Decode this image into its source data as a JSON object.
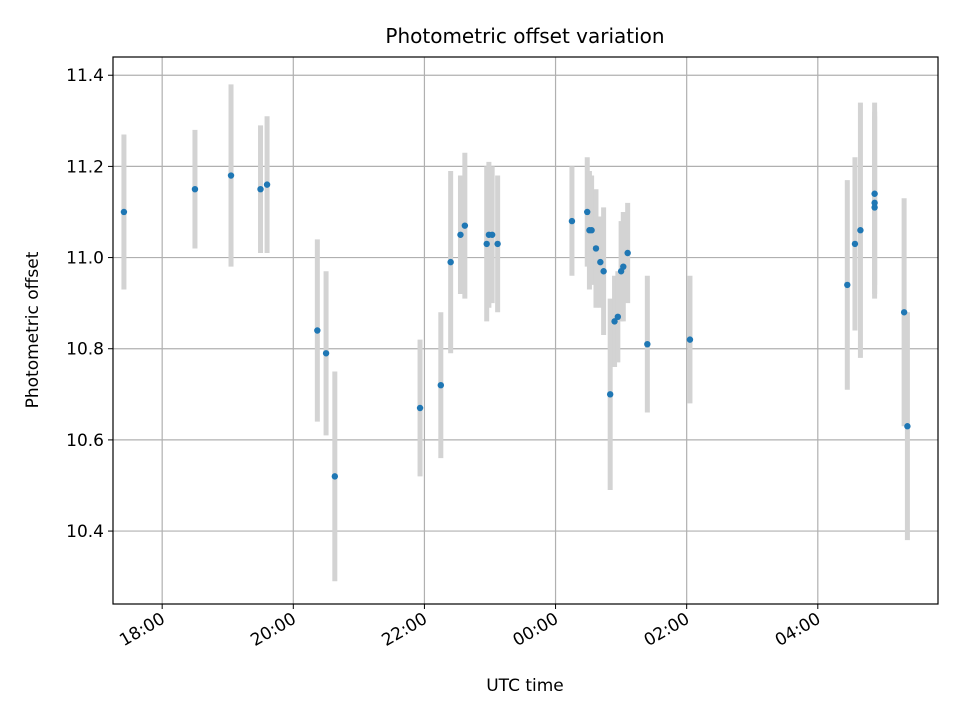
{
  "chart_data": {
    "type": "scatter",
    "title": "Photometric offset variation",
    "xlabel": "UTC time",
    "ylabel": "Photometric offset",
    "xlim": [
      "17:15",
      "05:50"
    ],
    "ylim": [
      10.24,
      11.44
    ],
    "x_ticks": [
      "18:00",
      "20:00",
      "22:00",
      "00:00",
      "02:00",
      "04:00"
    ],
    "y_ticks": [
      "10.4",
      "10.6",
      "10.8",
      "11.0",
      "11.2",
      "11.4"
    ],
    "grid": true,
    "colors": {
      "points": "#1f77b4",
      "errorbars": "#d3d3d3",
      "grid": "#b0b0b0"
    },
    "points": [
      {
        "x": "17:25",
        "y": 11.1,
        "yerr": 0.17
      },
      {
        "x": "18:30",
        "y": 11.15,
        "yerr": 0.13
      },
      {
        "x": "19:03",
        "y": 11.18,
        "yerr": 0.2
      },
      {
        "x": "19:30",
        "y": 11.15,
        "yerr": 0.14
      },
      {
        "x": "19:36",
        "y": 11.16,
        "yerr": 0.15
      },
      {
        "x": "20:22",
        "y": 10.84,
        "yerr": 0.2
      },
      {
        "x": "20:30",
        "y": 10.79,
        "yerr": 0.18
      },
      {
        "x": "20:38",
        "y": 10.52,
        "yerr": 0.23
      },
      {
        "x": "21:56",
        "y": 10.67,
        "yerr": 0.15
      },
      {
        "x": "22:15",
        "y": 10.72,
        "yerr": 0.16
      },
      {
        "x": "22:24",
        "y": 10.99,
        "yerr": 0.2
      },
      {
        "x": "22:33",
        "y": 11.05,
        "yerr": 0.13
      },
      {
        "x": "22:37",
        "y": 11.07,
        "yerr": 0.16
      },
      {
        "x": "22:57",
        "y": 11.03,
        "yerr": 0.17
      },
      {
        "x": "22:59",
        "y": 11.05,
        "yerr": 0.16
      },
      {
        "x": "23:02",
        "y": 11.05,
        "yerr": 0.15
      },
      {
        "x": "23:07",
        "y": 11.03,
        "yerr": 0.15
      },
      {
        "x": "00:15",
        "y": 11.08,
        "yerr": 0.12
      },
      {
        "x": "00:29",
        "y": 11.1,
        "yerr": 0.12
      },
      {
        "x": "00:31",
        "y": 11.06,
        "yerr": 0.13
      },
      {
        "x": "00:33",
        "y": 11.06,
        "yerr": 0.12
      },
      {
        "x": "00:37",
        "y": 11.02,
        "yerr": 0.13
      },
      {
        "x": "00:41",
        "y": 10.99,
        "yerr": 0.1
      },
      {
        "x": "00:44",
        "y": 10.97,
        "yerr": 0.14
      },
      {
        "x": "00:50",
        "y": 10.7,
        "yerr": 0.21
      },
      {
        "x": "00:54",
        "y": 10.86,
        "yerr": 0.1
      },
      {
        "x": "00:57",
        "y": 10.87,
        "yerr": 0.1
      },
      {
        "x": "01:00",
        "y": 10.97,
        "yerr": 0.11
      },
      {
        "x": "01:02",
        "y": 10.98,
        "yerr": 0.12
      },
      {
        "x": "01:06",
        "y": 11.01,
        "yerr": 0.11
      },
      {
        "x": "01:24",
        "y": 10.81,
        "yerr": 0.15
      },
      {
        "x": "02:03",
        "y": 10.82,
        "yerr": 0.14
      },
      {
        "x": "04:27",
        "y": 10.94,
        "yerr": 0.23
      },
      {
        "x": "04:34",
        "y": 11.03,
        "yerr": 0.19
      },
      {
        "x": "04:39",
        "y": 11.06,
        "yerr": 0.28
      },
      {
        "x": "04:52",
        "y": 11.14,
        "yerr": 0.2
      },
      {
        "x": "04:52",
        "y": 11.12,
        "yerr": 0.2
      },
      {
        "x": "04:52",
        "y": 11.11,
        "yerr": 0.2
      },
      {
        "x": "05:19",
        "y": 10.88,
        "yerr": 0.25
      },
      {
        "x": "05:22",
        "y": 10.63,
        "yerr": 0.25
      }
    ]
  }
}
